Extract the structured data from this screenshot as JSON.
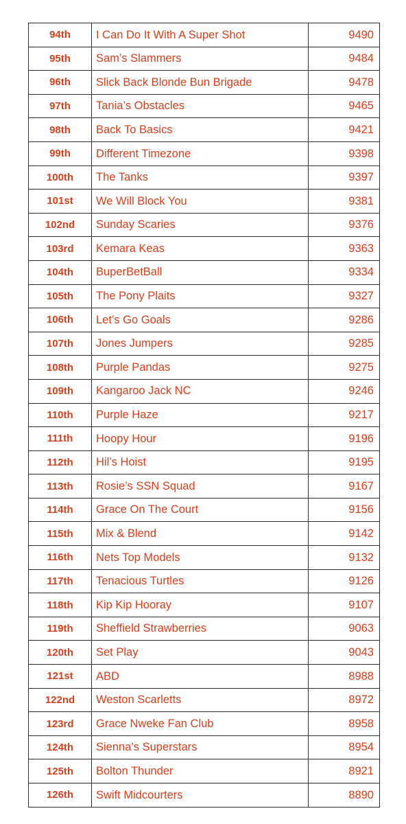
{
  "standings": [
    {
      "rank": "94th",
      "team": "I Can Do It With A Super Shot",
      "score": "9490"
    },
    {
      "rank": "95th",
      "team": "Sam’s Slammers",
      "score": "9484"
    },
    {
      "rank": "96th",
      "team": "Slick Back Blonde Bun Brigade",
      "score": "9478"
    },
    {
      "rank": "97th",
      "team": "Tania’s Obstacles",
      "score": "9465"
    },
    {
      "rank": "98th",
      "team": "Back To Basics",
      "score": "9421"
    },
    {
      "rank": "99th",
      "team": "Different Timezone",
      "score": "9398"
    },
    {
      "rank": "100th",
      "team": "The Tanks",
      "score": "9397"
    },
    {
      "rank": "101st",
      "team": "We Will Block You",
      "score": "9381"
    },
    {
      "rank": "102nd",
      "team": "Sunday Scaries",
      "score": "9376"
    },
    {
      "rank": "103rd",
      "team": "Kemara Keas",
      "score": "9363"
    },
    {
      "rank": "104th",
      "team": "BuperBetBall",
      "score": "9334"
    },
    {
      "rank": "105th",
      "team": "The Pony Plaits",
      "score": "9327"
    },
    {
      "rank": "106th",
      "team": "Let’s Go Goals",
      "score": "9286"
    },
    {
      "rank": "107th",
      "team": "Jones Jumpers",
      "score": "9285"
    },
    {
      "rank": "108th",
      "team": "Purple Pandas",
      "score": "9275"
    },
    {
      "rank": "109th",
      "team": "Kangaroo Jack NC",
      "score": "9246"
    },
    {
      "rank": "110th",
      "team": "Purple Haze",
      "score": "9217"
    },
    {
      "rank": "111th",
      "team": "Hoopy Hour",
      "score": "9196"
    },
    {
      "rank": "112th",
      "team": "Hil’s Hoist",
      "score": "9195"
    },
    {
      "rank": "113th",
      "team": "Rosie’s SSN Squad",
      "score": "9167"
    },
    {
      "rank": "114th",
      "team": "Grace On The Court",
      "score": "9156"
    },
    {
      "rank": "115th",
      "team": "Mix & Blend",
      "score": "9142"
    },
    {
      "rank": "116th",
      "team": "Nets Top Models",
      "score": "9132"
    },
    {
      "rank": "117th",
      "team": "Tenacious Turtles",
      "score": "9126"
    },
    {
      "rank": "118th",
      "team": "Kip Kip Hooray",
      "score": "9107"
    },
    {
      "rank": "119th",
      "team": "Sheffield Strawberries",
      "score": "9063"
    },
    {
      "rank": "120th",
      "team": "Set Play",
      "score": "9043"
    },
    {
      "rank": "121st",
      "team": "ABD",
      "score": "8988"
    },
    {
      "rank": "122nd",
      "team": "Weston Scarletts",
      "score": "8972"
    },
    {
      "rank": "123rd",
      "team": "Grace Nweke Fan Club",
      "score": "8958"
    },
    {
      "rank": "124th",
      "team": "Sienna’s Superstars",
      "score": "8954"
    },
    {
      "rank": "125th",
      "team": "Bolton Thunder",
      "score": "8921"
    },
    {
      "rank": "126th",
      "team": "Swift Midcourters",
      "score": "8890"
    }
  ],
  "colors": {
    "text": "#d2401c",
    "border": "#2b2b2b",
    "background": "#ffffff"
  }
}
